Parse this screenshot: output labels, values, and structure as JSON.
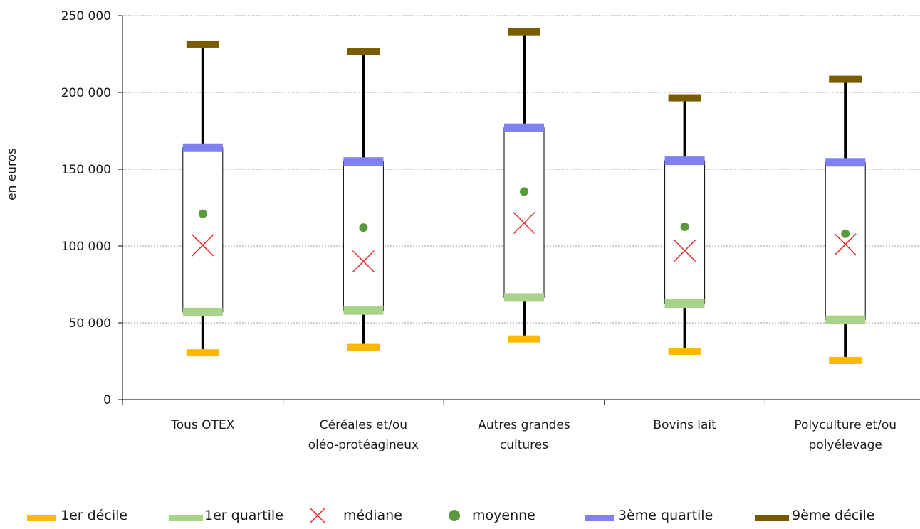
{
  "chart_data": {
    "type": "box",
    "ylabel": "en euros",
    "ylim": [
      0,
      250000
    ],
    "yticks": [
      0,
      50000,
      100000,
      150000,
      200000,
      250000
    ],
    "ytick_labels": [
      "0",
      "50 000",
      "100 000",
      "150 000",
      "200 000",
      "250 000"
    ],
    "grid": true,
    "legend_position": "bottom",
    "categories": [
      [
        "Tous OTEX"
      ],
      [
        "Céréales et/ou",
        "oléo-protéagineux"
      ],
      [
        "Autres grandes",
        "cultures"
      ],
      [
        "Bovins lait"
      ],
      [
        "Polyculture et/ou",
        "polyélevage"
      ]
    ],
    "series": [
      {
        "name": "1er décile",
        "values": [
          30500,
          34000,
          39500,
          31500,
          25500
        ]
      },
      {
        "name": "1er quartile",
        "values": [
          57000,
          58000,
          66500,
          62500,
          52000
        ]
      },
      {
        "name": "médiane",
        "values": [
          100500,
          90000,
          115000,
          97000,
          101000
        ]
      },
      {
        "name": "moyenne",
        "values": [
          121000,
          112000,
          135500,
          112500,
          108000
        ]
      },
      {
        "name": "3ème quartile",
        "values": [
          164000,
          155000,
          177000,
          155500,
          154500
        ]
      },
      {
        "name": "9ème décile",
        "values": [
          231500,
          226500,
          239500,
          196500,
          208500
        ]
      }
    ],
    "colors": {
      "decile1": "#FFB800",
      "quartile1": "#A8D48A",
      "median": "#E8262C",
      "mean": "#5A9A3C",
      "quartile3": "#8080F0",
      "decile9": "#7A5C00",
      "whisker": "#000000",
      "grid": "#9a9a9a"
    }
  }
}
